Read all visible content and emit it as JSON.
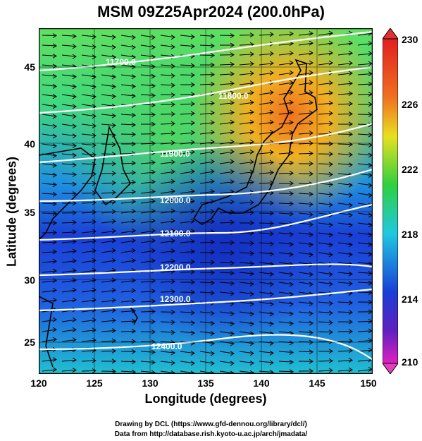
{
  "title": "MSM 09Z25Apr2024 (200.0hPa)",
  "xlabel": "Longitude (degrees)",
  "ylabel": "Latitude  (degrees)",
  "x_ticks": [
    "120",
    "125",
    "130",
    "135",
    "140",
    "145",
    "150"
  ],
  "y_ticks": [
    "25",
    "30",
    "35",
    "40",
    "45"
  ],
  "colorbar_labels": [
    "230",
    "226",
    "222",
    "218",
    "214",
    "210"
  ],
  "contour_labels": [
    "11700.0",
    "11800.0",
    "11900.0",
    "12000.0",
    "12100.0",
    "12200.0",
    "12300.0",
    "12400.0"
  ],
  "credits": [
    "Drawing by DCL (https://www.gfd-dennou.org/library/dcl/)",
    "Data from http://database.rish.kyoto-u.ac.jp/arch/jmadata/"
  ],
  "colors": {
    "warm": "#f08020",
    "mid": "#30d040",
    "cool": "#1a3fd6",
    "contour": "#ffffff"
  }
}
